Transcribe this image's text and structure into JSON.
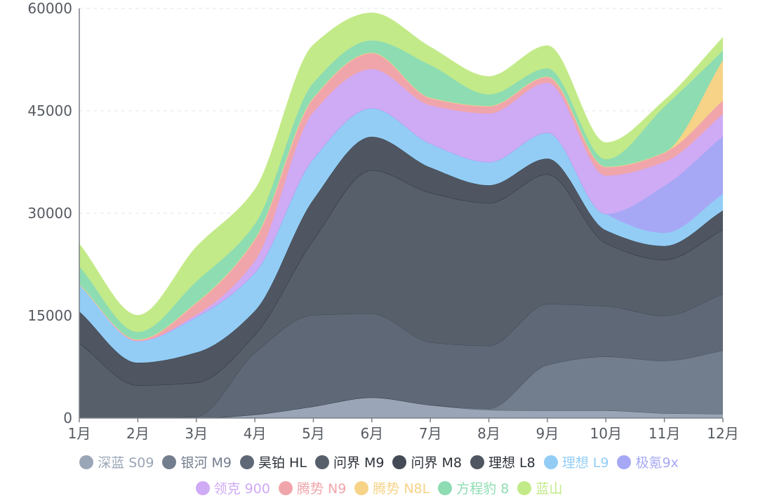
{
  "chart_data": {
    "type": "area",
    "stacked": true,
    "smooth": true,
    "title": "",
    "xlabel": "",
    "ylabel": "",
    "categories": [
      "1月",
      "2月",
      "3月",
      "4月",
      "5月",
      "6月",
      "7月",
      "8月",
      "9月",
      "10月",
      "11月",
      "12月"
    ],
    "ylim": [
      0,
      60000
    ],
    "yticks": [
      "0",
      "15000",
      "30000",
      "45000",
      "60000"
    ],
    "grid": true,
    "legend_position": "bottom",
    "series": [
      {
        "name": "深蓝 S09",
        "color": "#9aa6b7",
        "values": [
          0,
          0,
          0,
          500,
          1700,
          3000,
          1900,
          1200,
          1100,
          1100,
          700,
          600
        ]
      },
      {
        "name": "银河 M9",
        "color": "#727d8d",
        "values": [
          0,
          0,
          0,
          0,
          0,
          0,
          0,
          200,
          6700,
          7900,
          7700,
          9300
        ]
      },
      {
        "name": "昊铂 HL",
        "color": "#5f6877",
        "values": [
          0,
          0,
          200,
          9100,
          13400,
          12300,
          9200,
          9200,
          8900,
          7400,
          6600,
          8300
        ]
      },
      {
        "name": "问界 M9",
        "color": "#575f6b",
        "values": [
          11000,
          4800,
          5000,
          2600,
          11000,
          21000,
          21900,
          20900,
          19000,
          9200,
          8200,
          9400
        ]
      },
      {
        "name": "问界 M8",
        "color": "#444b56",
        "values": [
          0,
          0,
          0,
          0,
          0,
          0,
          0,
          0,
          0,
          0,
          0,
          0
        ]
      },
      {
        "name": "理想 L8",
        "color": "#505661",
        "values": [
          4600,
          3300,
          4400,
          3500,
          5900,
          4900,
          3700,
          2600,
          2300,
          1900,
          2000,
          2800
        ]
      },
      {
        "name": "理想 L9",
        "color": "#93cdf5",
        "values": [
          4000,
          3200,
          5200,
          5600,
          6000,
          4200,
          3500,
          3400,
          3800,
          2400,
          1900,
          2400
        ]
      },
      {
        "name": "极氪9x",
        "color": "#a6a8f5",
        "values": [
          0,
          0,
          0,
          0,
          0,
          0,
          0,
          0,
          0,
          0,
          6900,
          8500
        ]
      },
      {
        "name": "领克 900",
        "color": "#cfaaf5",
        "values": [
          0,
          0,
          300,
          1700,
          6800,
          5700,
          5600,
          7100,
          7300,
          5600,
          3500,
          3200
        ]
      },
      {
        "name": "腾势 N9",
        "color": "#f0a5ab",
        "values": [
          0,
          200,
          1800,
          3200,
          2100,
          2400,
          1100,
          1100,
          900,
          1300,
          1400,
          2000
        ]
      },
      {
        "name": "腾势 N8L",
        "color": "#f6d387",
        "values": [
          0,
          0,
          0,
          0,
          0,
          0,
          0,
          0,
          0,
          0,
          0,
          5900
        ]
      },
      {
        "name": "方程豹 8",
        "color": "#8edcb2",
        "values": [
          2600,
          1100,
          3100,
          2200,
          2200,
          1800,
          4800,
          1700,
          1200,
          1100,
          6700,
          1400
        ]
      },
      {
        "name": "蓝山",
        "color": "#c3ea88",
        "values": [
          3200,
          2400,
          5000,
          5000,
          5500,
          4000,
          2600,
          2600,
          3300,
          2400,
          900,
          1900
        ]
      }
    ]
  }
}
